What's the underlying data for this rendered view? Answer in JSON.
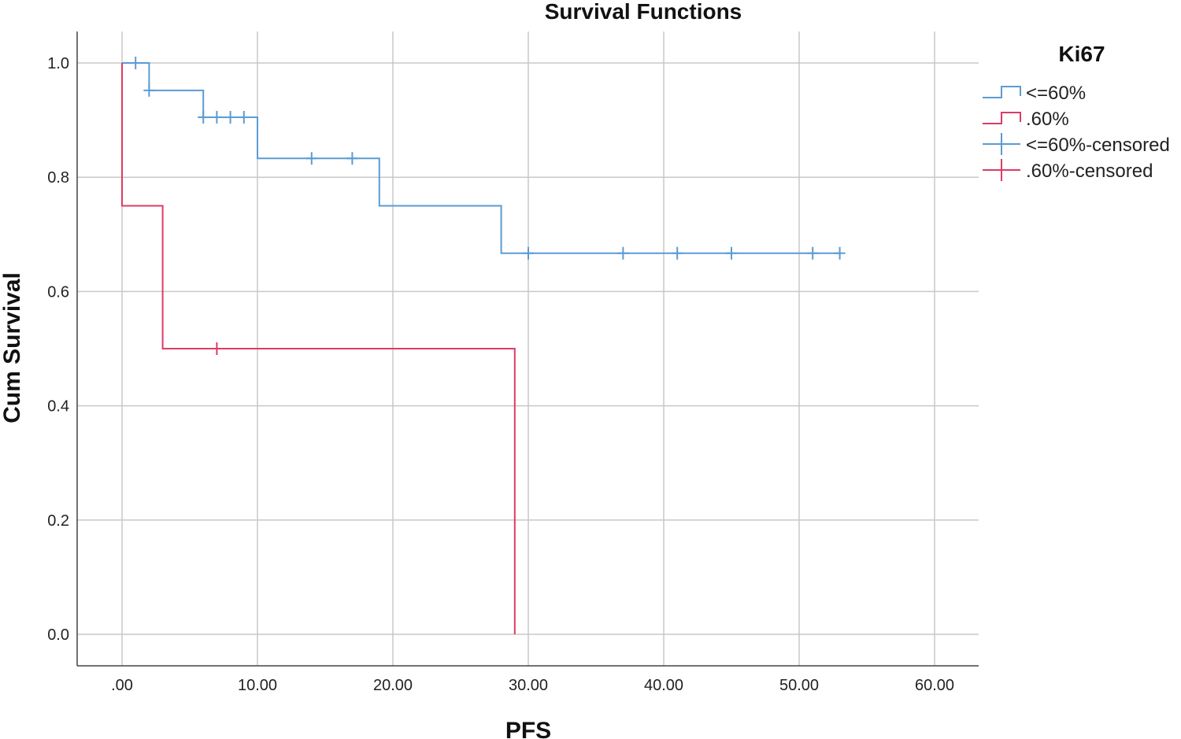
{
  "chart_data": {
    "type": "line",
    "title": "Survival Functions",
    "xlabel": "PFS",
    "ylabel": "Cum Survival",
    "xlim": [
      0,
      60
    ],
    "ylim": [
      0,
      1.0
    ],
    "x_ticks": [
      0,
      10,
      20,
      30,
      40,
      50,
      60
    ],
    "x_tick_labels": [
      ".00",
      "10.00",
      "20.00",
      "30.00",
      "40.00",
      "50.00",
      "60.00"
    ],
    "y_ticks": [
      0,
      0.2,
      0.4,
      0.6,
      0.8,
      1.0
    ],
    "y_tick_labels": [
      "0.0",
      "0.2",
      "0.4",
      "0.6",
      "0.8",
      "1.0"
    ],
    "grid": true,
    "legend": {
      "title": "Ki67",
      "placement": "top-right",
      "entries": [
        "<=60%",
        ".60%",
        "<=60%-censored",
        ".60%-censored"
      ]
    },
    "series": [
      {
        "name": "<=60%",
        "color": "#5b9bd5",
        "steps": [
          [
            0,
            1.0
          ],
          [
            2,
            0.952
          ],
          [
            6,
            0.905
          ],
          [
            10,
            0.833
          ],
          [
            19,
            0.75
          ],
          [
            28,
            0.667
          ]
        ],
        "end_x": 53,
        "censored": [
          [
            1,
            1.0
          ],
          [
            2,
            0.952
          ],
          [
            6,
            0.905
          ],
          [
            7,
            0.905
          ],
          [
            8,
            0.905
          ],
          [
            9,
            0.905
          ],
          [
            14,
            0.833
          ],
          [
            17,
            0.833
          ],
          [
            30,
            0.667
          ],
          [
            37,
            0.667
          ],
          [
            41,
            0.667
          ],
          [
            45,
            0.667
          ],
          [
            51,
            0.667
          ],
          [
            53,
            0.667
          ]
        ]
      },
      {
        "name": ".60%",
        "color": "#dc3c64",
        "steps": [
          [
            0,
            1.0
          ],
          [
            0,
            0.75
          ],
          [
            3,
            0.5
          ],
          [
            29,
            0.0
          ]
        ],
        "end_x": 29,
        "censored": [
          [
            7,
            0.5
          ]
        ]
      }
    ]
  }
}
